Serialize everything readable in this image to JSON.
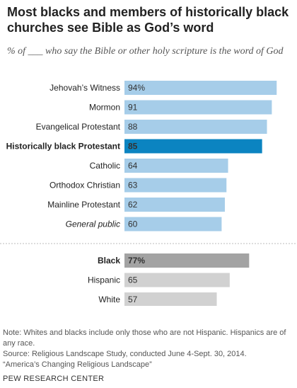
{
  "title": "Most blacks and members of historically black churches see Bible as God’s word",
  "subtitle": "% of ___ who say the Bible or other holy scripture is the word of God",
  "colors": {
    "religion_bar": "#a6cde9",
    "highlight_religion_bar": "#0b84c1",
    "race_bar": "#d1d1d1",
    "highlight_race_bar": "#a3a3a3",
    "group_divider": "#bbbbbb"
  },
  "chart_data": {
    "type": "bar",
    "orientation": "horizontal",
    "xlim": [
      0,
      100
    ],
    "grid": false,
    "groups": [
      {
        "categories": [
          "Jehovah’s Witness",
          "Mormon",
          "Evangelical Protestant",
          "Historically black Protestant",
          "Catholic",
          "Orthodox Christian",
          "Mainline Protestant",
          "General public"
        ],
        "values": [
          94,
          91,
          88,
          85,
          64,
          63,
          62,
          60
        ],
        "value_labels": [
          "94%",
          "91",
          "88",
          "85",
          "64",
          "63",
          "62",
          "60"
        ],
        "highlighted": "Historically black Protestant",
        "italic": "General public"
      },
      {
        "categories": [
          "Black",
          "Hispanic",
          "White"
        ],
        "values": [
          77,
          65,
          57
        ],
        "value_labels": [
          "77%",
          "65",
          "57"
        ],
        "highlighted": "Black"
      }
    ]
  },
  "note": "Note: Whites and blacks include only those who are not Hispanic. Hispanics are of any race.",
  "source_line1": "Source: Religious Landscape Study, conducted June 4-Sept. 30, 2014.",
  "source_line2": "“America’s Changing Religious Landscape”",
  "brand": "PEW RESEARCH CENTER"
}
